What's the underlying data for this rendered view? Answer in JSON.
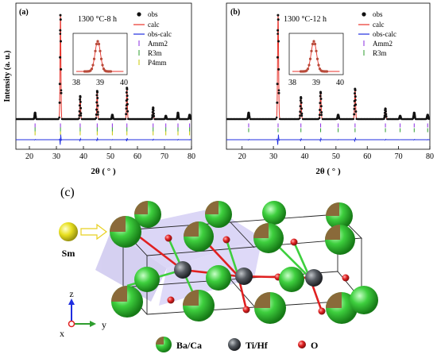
{
  "chart_data": [
    {
      "type": "line",
      "panel_label": "(a)",
      "condition": "1300 °C-8 h",
      "xlabel": "2θ ( ° )",
      "ylabel": "Intensity (a. u.)",
      "xlim": [
        15,
        80
      ],
      "xticks": [
        "20",
        "30",
        "40",
        "50",
        "60",
        "70",
        "80"
      ],
      "ylim": [
        0,
        1
      ],
      "grid": false,
      "legend_position": "top-right",
      "legend": [
        "obs",
        "calc",
        "obs-calc",
        "Amm2",
        "R3m",
        "P4mm"
      ],
      "peaks": [
        {
          "x": 22.1,
          "y": 0.06
        },
        {
          "x": 31.5,
          "y": 1.0
        },
        {
          "x": 38.8,
          "y": 0.22
        },
        {
          "x": 45.1,
          "y": 0.27
        },
        {
          "x": 50.7,
          "y": 0.04
        },
        {
          "x": 56.1,
          "y": 0.3
        },
        {
          "x": 65.8,
          "y": 0.11
        },
        {
          "x": 70.5,
          "y": 0.03
        },
        {
          "x": 75.0,
          "y": 0.06
        },
        {
          "x": 79.3,
          "y": 0.04
        }
      ],
      "ticks": {
        "Amm2": [
          22.1,
          31.5,
          38.8,
          45.1,
          50.7,
          56.1,
          65.8,
          70.5,
          75.0,
          79.3
        ],
        "R3m": [
          22.1,
          31.5,
          38.8,
          45.1,
          50.7,
          56.1,
          65.8,
          70.5,
          75.0,
          79.3
        ],
        "P4mm": [
          22.1,
          31.5,
          38.8,
          45.1,
          50.7,
          56.1,
          65.8,
          70.5,
          75.0,
          79.3
        ]
      },
      "inset": {
        "xlim": [
          38,
          40
        ],
        "xticks": [
          "38",
          "39",
          "40"
        ],
        "peak_x": 38.9
      }
    },
    {
      "type": "line",
      "panel_label": "(b)",
      "condition": "1300 °C-12 h",
      "xlabel": "2θ ( ° )",
      "ylabel": "",
      "xlim": [
        15,
        80
      ],
      "xticks": [
        "20",
        "30",
        "40",
        "50",
        "60",
        "70",
        "80"
      ],
      "ylim": [
        0,
        1
      ],
      "grid": false,
      "legend_position": "top-right",
      "legend": [
        "obs",
        "calc",
        "obs-calc",
        "Amm2",
        "R3m"
      ],
      "peaks": [
        {
          "x": 22.1,
          "y": 0.06
        },
        {
          "x": 31.5,
          "y": 1.0
        },
        {
          "x": 38.8,
          "y": 0.21
        },
        {
          "x": 45.1,
          "y": 0.26
        },
        {
          "x": 50.7,
          "y": 0.04
        },
        {
          "x": 56.1,
          "y": 0.29
        },
        {
          "x": 65.8,
          "y": 0.1
        },
        {
          "x": 70.5,
          "y": 0.03
        },
        {
          "x": 75.0,
          "y": 0.06
        },
        {
          "x": 79.3,
          "y": 0.04
        }
      ],
      "ticks": {
        "Amm2": [
          22.1,
          31.5,
          38.8,
          45.1,
          50.7,
          56.1,
          65.8,
          70.5,
          75.0,
          79.3
        ],
        "R3m": [
          22.1,
          31.5,
          38.8,
          45.1,
          50.7,
          56.1,
          65.8,
          70.5,
          75.0,
          79.3
        ]
      },
      "inset": {
        "xlim": [
          38,
          40
        ],
        "xticks": [
          "38",
          "39",
          "40"
        ],
        "peak_x": 38.9
      }
    }
  ],
  "structure": {
    "panel_label": "(c)",
    "dopant_label": "Sm",
    "axes": {
      "z": "z",
      "x": "x",
      "y": "y"
    },
    "legend": [
      "Ba/Ca",
      "Ti/Hf",
      "O"
    ]
  },
  "colors": {
    "obs": "#111111",
    "calc": "#e8322a",
    "diff": "#1f2ee0",
    "Amm2": "#8a2be2",
    "R3m": "#2e9e2e",
    "P4mm": "#c8c800",
    "ba_ca": "#3ecf3e",
    "ti_hf": "#555a60",
    "oxygen": "#e02020",
    "sm": "#e8e020"
  }
}
